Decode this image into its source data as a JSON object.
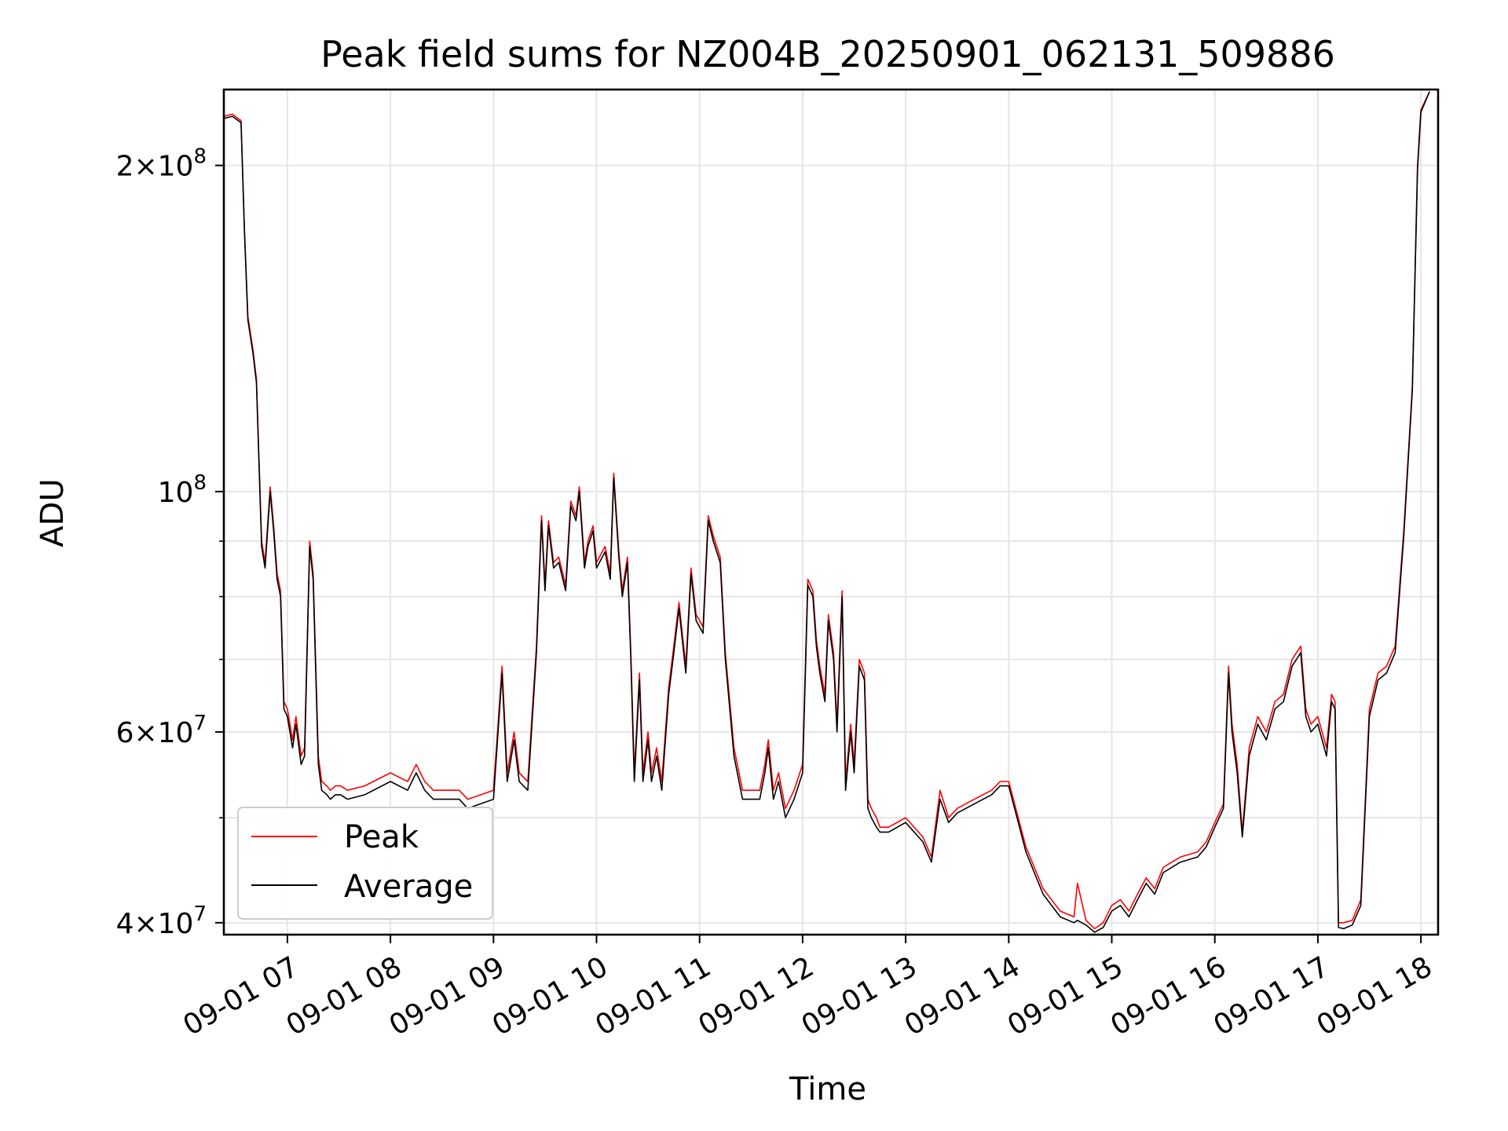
{
  "chart_data": {
    "type": "line",
    "title": "Peak field sums for NZ004B_20250901_062131_509886",
    "xlabel": "Time",
    "ylabel": "ADU",
    "y_scale": "log",
    "ylim": [
      39000000,
      235000000
    ],
    "xlim": [
      "2025-09-01 06:23",
      "2025-09-01 18:10"
    ],
    "grid": true,
    "legend_position": "lower-left",
    "x_ticks": [
      {
        "label": "09-01 07",
        "time": "2025-09-01 07:00"
      },
      {
        "label": "09-01 08",
        "time": "2025-09-01 08:00"
      },
      {
        "label": "09-01 09",
        "time": "2025-09-01 09:00"
      },
      {
        "label": "09-01 10",
        "time": "2025-09-01 10:00"
      },
      {
        "label": "09-01 11",
        "time": "2025-09-01 11:00"
      },
      {
        "label": "09-01 12",
        "time": "2025-09-01 12:00"
      },
      {
        "label": "09-01 13",
        "time": "2025-09-01 13:00"
      },
      {
        "label": "09-01 14",
        "time": "2025-09-01 14:00"
      },
      {
        "label": "09-01 15",
        "time": "2025-09-01 15:00"
      },
      {
        "label": "09-01 16",
        "time": "2025-09-01 16:00"
      },
      {
        "label": "09-01 17",
        "time": "2025-09-01 17:00"
      },
      {
        "label": "09-01 18",
        "time": "2025-09-01 18:00"
      }
    ],
    "y_ticks": [
      {
        "base": "4",
        "exp": "7",
        "value": 40000000
      },
      {
        "base": "6",
        "exp": "7",
        "value": 60000000
      },
      {
        "base": "",
        "exp": "8",
        "value": 100000000
      },
      {
        "base": "2",
        "exp": "8",
        "value": 200000000
      }
    ],
    "y_minor_ticks": [
      50000000,
      70000000,
      80000000,
      90000000
    ],
    "series": [
      {
        "name": "Peak",
        "color": "#ff0000",
        "x": [
          "2025-09-01 06:23",
          "2025-09-01 06:28",
          "2025-09-01 06:33",
          "2025-09-01 06:35",
          "2025-09-01 06:37",
          "2025-09-01 06:40",
          "2025-09-01 06:42",
          "2025-09-01 06:45",
          "2025-09-01 06:47",
          "2025-09-01 06:50",
          "2025-09-01 06:52",
          "2025-09-01 06:54",
          "2025-09-01 06:56",
          "2025-09-01 06:58",
          "2025-09-01 07:00",
          "2025-09-01 07:03",
          "2025-09-01 07:05",
          "2025-09-01 07:08",
          "2025-09-01 07:10",
          "2025-09-01 07:13",
          "2025-09-01 07:15",
          "2025-09-01 07:18",
          "2025-09-01 07:20",
          "2025-09-01 07:23",
          "2025-09-01 07:25",
          "2025-09-01 07:28",
          "2025-09-01 07:31",
          "2025-09-01 07:35",
          "2025-09-01 07:45",
          "2025-09-01 08:00",
          "2025-09-01 08:10",
          "2025-09-01 08:15",
          "2025-09-01 08:20",
          "2025-09-01 08:25",
          "2025-09-01 08:30",
          "2025-09-01 08:35",
          "2025-09-01 08:40",
          "2025-09-01 08:45",
          "2025-09-01 09:00",
          "2025-09-01 09:05",
          "2025-09-01 09:08",
          "2025-09-01 09:12",
          "2025-09-01 09:15",
          "2025-09-01 09:20",
          "2025-09-01 09:25",
          "2025-09-01 09:28",
          "2025-09-01 09:30",
          "2025-09-01 09:32",
          "2025-09-01 09:35",
          "2025-09-01 09:38",
          "2025-09-01 09:42",
          "2025-09-01 09:45",
          "2025-09-01 09:48",
          "2025-09-01 09:50",
          "2025-09-01 09:53",
          "2025-09-01 09:55",
          "2025-09-01 09:58",
          "2025-09-01 10:00",
          "2025-09-01 10:05",
          "2025-09-01 10:08",
          "2025-09-01 10:10",
          "2025-09-01 10:13",
          "2025-09-01 10:15",
          "2025-09-01 10:18",
          "2025-09-01 10:20",
          "2025-09-01 10:22",
          "2025-09-01 10:25",
          "2025-09-01 10:27",
          "2025-09-01 10:30",
          "2025-09-01 10:32",
          "2025-09-01 10:35",
          "2025-09-01 10:38",
          "2025-09-01 10:42",
          "2025-09-01 10:45",
          "2025-09-01 10:48",
          "2025-09-01 10:52",
          "2025-09-01 10:55",
          "2025-09-01 10:58",
          "2025-09-01 11:02",
          "2025-09-01 11:05",
          "2025-09-01 11:08",
          "2025-09-01 11:12",
          "2025-09-01 11:15",
          "2025-09-01 11:20",
          "2025-09-01 11:25",
          "2025-09-01 11:35",
          "2025-09-01 11:38",
          "2025-09-01 11:40",
          "2025-09-01 11:43",
          "2025-09-01 11:46",
          "2025-09-01 11:50",
          "2025-09-01 11:55",
          "2025-09-01 12:00",
          "2025-09-01 12:03",
          "2025-09-01 12:06",
          "2025-09-01 12:08",
          "2025-09-01 12:10",
          "2025-09-01 12:13",
          "2025-09-01 12:15",
          "2025-09-01 12:18",
          "2025-09-01 12:20",
          "2025-09-01 12:23",
          "2025-09-01 12:25",
          "2025-09-01 12:28",
          "2025-09-01 12:30",
          "2025-09-01 12:33",
          "2025-09-01 12:36",
          "2025-09-01 12:38",
          "2025-09-01 12:40",
          "2025-09-01 12:43",
          "2025-09-01 12:45",
          "2025-09-01 12:50",
          "2025-09-01 13:00",
          "2025-09-01 13:10",
          "2025-09-01 13:15",
          "2025-09-01 13:20",
          "2025-09-01 13:25",
          "2025-09-01 13:30",
          "2025-09-01 13:40",
          "2025-09-01 13:50",
          "2025-09-01 13:55",
          "2025-09-01 14:00",
          "2025-09-01 14:10",
          "2025-09-01 14:20",
          "2025-09-01 14:30",
          "2025-09-01 14:38",
          "2025-09-01 14:40",
          "2025-09-01 14:45",
          "2025-09-01 14:50",
          "2025-09-01 14:55",
          "2025-09-01 15:00",
          "2025-09-01 15:05",
          "2025-09-01 15:10",
          "2025-09-01 15:15",
          "2025-09-01 15:20",
          "2025-09-01 15:25",
          "2025-09-01 15:30",
          "2025-09-01 15:40",
          "2025-09-01 15:50",
          "2025-09-01 15:55",
          "2025-09-01 16:00",
          "2025-09-01 16:05",
          "2025-09-01 16:08",
          "2025-09-01 16:10",
          "2025-09-01 16:13",
          "2025-09-01 16:16",
          "2025-09-01 16:20",
          "2025-09-01 16:25",
          "2025-09-01 16:30",
          "2025-09-01 16:35",
          "2025-09-01 16:40",
          "2025-09-01 16:45",
          "2025-09-01 16:50",
          "2025-09-01 16:53",
          "2025-09-01 16:56",
          "2025-09-01 17:00",
          "2025-09-01 17:05",
          "2025-09-01 17:08",
          "2025-09-01 17:10",
          "2025-09-01 17:12",
          "2025-09-01 17:15",
          "2025-09-01 17:20",
          "2025-09-01 17:25",
          "2025-09-01 17:30",
          "2025-09-01 17:35",
          "2025-09-01 17:40",
          "2025-09-01 17:45",
          "2025-09-01 17:50",
          "2025-09-01 17:55",
          "2025-09-01 17:58",
          "2025-09-01 18:00",
          "2025-09-01 18:05"
        ],
        "y": [
          222000000,
          223000000,
          220000000,
          175000000,
          145000000,
          135000000,
          127000000,
          90000000,
          86000000,
          101000000,
          93000000,
          84000000,
          81000000,
          64000000,
          63000000,
          59000000,
          62000000,
          57000000,
          58000000,
          90000000,
          84000000,
          57000000,
          54000000,
          53500000,
          53000000,
          53500000,
          53500000,
          53000000,
          53500000,
          55000000,
          54000000,
          56000000,
          54000000,
          53000000,
          53000000,
          53000000,
          53000000,
          52000000,
          53000000,
          69000000,
          55000000,
          60000000,
          55000000,
          54000000,
          72000000,
          95000000,
          82000000,
          94000000,
          86000000,
          87000000,
          82000000,
          98000000,
          95000000,
          101000000,
          86000000,
          90000000,
          93000000,
          86000000,
          89000000,
          84000000,
          104000000,
          88000000,
          81000000,
          87000000,
          71000000,
          55000000,
          68000000,
          55000000,
          60000000,
          55000000,
          58000000,
          54000000,
          66000000,
          72000000,
          79000000,
          69000000,
          85000000,
          77000000,
          75000000,
          95000000,
          91000000,
          87000000,
          71000000,
          58000000,
          53000000,
          53000000,
          56000000,
          59000000,
          53000000,
          55000000,
          51000000,
          53000000,
          56000000,
          83000000,
          81000000,
          73000000,
          69000000,
          65000000,
          77000000,
          71000000,
          61000000,
          81000000,
          54000000,
          61000000,
          56000000,
          70000000,
          68000000,
          52000000,
          51000000,
          50000000,
          49000000,
          49000000,
          50000000,
          48000000,
          46000000,
          53000000,
          50000000,
          51000000,
          52000000,
          53000000,
          54000000,
          54000000,
          47000000,
          43000000,
          41000000,
          40500000,
          43500000,
          40200000,
          39500000,
          40000000,
          41500000,
          42000000,
          41000000,
          42500000,
          44000000,
          43000000,
          45000000,
          46000000,
          46500000,
          47500000,
          49500000,
          51500000,
          69000000,
          61000000,
          56000000,
          48500000,
          58000000,
          62000000,
          60000000,
          64000000,
          65000000,
          70000000,
          72000000,
          63000000,
          61000000,
          62000000,
          58000000,
          65000000,
          64000000,
          40000000,
          40000000,
          40200000,
          42000000,
          63000000,
          68000000,
          69000000,
          72000000,
          92000000,
          125000000,
          200000000,
          225000000,
          234000000
        ]
      },
      {
        "name": "Average",
        "color": "#000000",
        "x": [
          "2025-09-01 06:23",
          "2025-09-01 06:28",
          "2025-09-01 06:33",
          "2025-09-01 06:35",
          "2025-09-01 06:37",
          "2025-09-01 06:40",
          "2025-09-01 06:42",
          "2025-09-01 06:45",
          "2025-09-01 06:47",
          "2025-09-01 06:50",
          "2025-09-01 06:52",
          "2025-09-01 06:54",
          "2025-09-01 06:56",
          "2025-09-01 06:58",
          "2025-09-01 07:00",
          "2025-09-01 07:03",
          "2025-09-01 07:05",
          "2025-09-01 07:08",
          "2025-09-01 07:10",
          "2025-09-01 07:13",
          "2025-09-01 07:15",
          "2025-09-01 07:18",
          "2025-09-01 07:20",
          "2025-09-01 07:23",
          "2025-09-01 07:25",
          "2025-09-01 07:28",
          "2025-09-01 07:31",
          "2025-09-01 07:35",
          "2025-09-01 07:45",
          "2025-09-01 08:00",
          "2025-09-01 08:10",
          "2025-09-01 08:15",
          "2025-09-01 08:20",
          "2025-09-01 08:25",
          "2025-09-01 08:30",
          "2025-09-01 08:35",
          "2025-09-01 08:40",
          "2025-09-01 08:45",
          "2025-09-01 09:00",
          "2025-09-01 09:05",
          "2025-09-01 09:08",
          "2025-09-01 09:12",
          "2025-09-01 09:15",
          "2025-09-01 09:20",
          "2025-09-01 09:25",
          "2025-09-01 09:28",
          "2025-09-01 09:30",
          "2025-09-01 09:32",
          "2025-09-01 09:35",
          "2025-09-01 09:38",
          "2025-09-01 09:42",
          "2025-09-01 09:45",
          "2025-09-01 09:48",
          "2025-09-01 09:50",
          "2025-09-01 09:53",
          "2025-09-01 09:55",
          "2025-09-01 09:58",
          "2025-09-01 10:00",
          "2025-09-01 10:05",
          "2025-09-01 10:08",
          "2025-09-01 10:10",
          "2025-09-01 10:13",
          "2025-09-01 10:15",
          "2025-09-01 10:18",
          "2025-09-01 10:20",
          "2025-09-01 10:22",
          "2025-09-01 10:25",
          "2025-09-01 10:27",
          "2025-09-01 10:30",
          "2025-09-01 10:32",
          "2025-09-01 10:35",
          "2025-09-01 10:38",
          "2025-09-01 10:42",
          "2025-09-01 10:45",
          "2025-09-01 10:48",
          "2025-09-01 10:52",
          "2025-09-01 10:55",
          "2025-09-01 10:58",
          "2025-09-01 11:02",
          "2025-09-01 11:05",
          "2025-09-01 11:08",
          "2025-09-01 11:12",
          "2025-09-01 11:15",
          "2025-09-01 11:20",
          "2025-09-01 11:25",
          "2025-09-01 11:35",
          "2025-09-01 11:38",
          "2025-09-01 11:40",
          "2025-09-01 11:43",
          "2025-09-01 11:46",
          "2025-09-01 11:50",
          "2025-09-01 11:55",
          "2025-09-01 12:00",
          "2025-09-01 12:03",
          "2025-09-01 12:06",
          "2025-09-01 12:08",
          "2025-09-01 12:10",
          "2025-09-01 12:13",
          "2025-09-01 12:15",
          "2025-09-01 12:18",
          "2025-09-01 12:20",
          "2025-09-01 12:23",
          "2025-09-01 12:25",
          "2025-09-01 12:28",
          "2025-09-01 12:30",
          "2025-09-01 12:33",
          "2025-09-01 12:36",
          "2025-09-01 12:38",
          "2025-09-01 12:40",
          "2025-09-01 12:43",
          "2025-09-01 12:45",
          "2025-09-01 12:50",
          "2025-09-01 13:00",
          "2025-09-01 13:10",
          "2025-09-01 13:15",
          "2025-09-01 13:20",
          "2025-09-01 13:25",
          "2025-09-01 13:30",
          "2025-09-01 13:40",
          "2025-09-01 13:50",
          "2025-09-01 13:55",
          "2025-09-01 14:00",
          "2025-09-01 14:10",
          "2025-09-01 14:20",
          "2025-09-01 14:30",
          "2025-09-01 14:38",
          "2025-09-01 14:40",
          "2025-09-01 14:45",
          "2025-09-01 14:50",
          "2025-09-01 14:55",
          "2025-09-01 15:00",
          "2025-09-01 15:05",
          "2025-09-01 15:10",
          "2025-09-01 15:15",
          "2025-09-01 15:20",
          "2025-09-01 15:25",
          "2025-09-01 15:30",
          "2025-09-01 15:40",
          "2025-09-01 15:50",
          "2025-09-01 15:55",
          "2025-09-01 16:00",
          "2025-09-01 16:05",
          "2025-09-01 16:08",
          "2025-09-01 16:10",
          "2025-09-01 16:13",
          "2025-09-01 16:16",
          "2025-09-01 16:20",
          "2025-09-01 16:25",
          "2025-09-01 16:30",
          "2025-09-01 16:35",
          "2025-09-01 16:40",
          "2025-09-01 16:45",
          "2025-09-01 16:50",
          "2025-09-01 16:53",
          "2025-09-01 16:56",
          "2025-09-01 17:00",
          "2025-09-01 17:05",
          "2025-09-01 17:08",
          "2025-09-01 17:10",
          "2025-09-01 17:12",
          "2025-09-01 17:15",
          "2025-09-01 17:20",
          "2025-09-01 17:25",
          "2025-09-01 17:30",
          "2025-09-01 17:35",
          "2025-09-01 17:40",
          "2025-09-01 17:45",
          "2025-09-01 17:50",
          "2025-09-01 17:55",
          "2025-09-01 17:58",
          "2025-09-01 18:00",
          "2025-09-01 18:05"
        ],
        "y": [
          221000000,
          222000000,
          219000000,
          174000000,
          144000000,
          134000000,
          126000000,
          89000000,
          85000000,
          100000000,
          92000000,
          83000000,
          80000000,
          63000000,
          62000000,
          58000000,
          61000000,
          56000000,
          57000000,
          89000000,
          83000000,
          56000000,
          53000000,
          52500000,
          52000000,
          52500000,
          52500000,
          52000000,
          52500000,
          54000000,
          53000000,
          55000000,
          53000000,
          52000000,
          52000000,
          52000000,
          52000000,
          51000000,
          52000000,
          68000000,
          54000000,
          59000000,
          54000000,
          53000000,
          71000000,
          94000000,
          81000000,
          93000000,
          85000000,
          86000000,
          81000000,
          97000000,
          94000000,
          100000000,
          85000000,
          89000000,
          92000000,
          85000000,
          88000000,
          83000000,
          103000000,
          87000000,
          80000000,
          86000000,
          70000000,
          54000000,
          67000000,
          54000000,
          59000000,
          54000000,
          57000000,
          53000000,
          65000000,
          71000000,
          78000000,
          68000000,
          84000000,
          76000000,
          74000000,
          94000000,
          90000000,
          86000000,
          70000000,
          57000000,
          52000000,
          52000000,
          55000000,
          58000000,
          52000000,
          54000000,
          50000000,
          52000000,
          55000000,
          82000000,
          80000000,
          72000000,
          68000000,
          64000000,
          76000000,
          70000000,
          60000000,
          80000000,
          53000000,
          60000000,
          55000000,
          69000000,
          67000000,
          51000000,
          50000000,
          49000000,
          48500000,
          48500000,
          49500000,
          47500000,
          45500000,
          52000000,
          49500000,
          50500000,
          51500000,
          52500000,
          53500000,
          53500000,
          46500000,
          42500000,
          40500000,
          40000000,
          40200000,
          39800000,
          39200000,
          39600000,
          41000000,
          41500000,
          40500000,
          42000000,
          43500000,
          42500000,
          44500000,
          45500000,
          46000000,
          47000000,
          49000000,
          51000000,
          68000000,
          60000000,
          55000000,
          48000000,
          57000000,
          61000000,
          59000000,
          63000000,
          64000000,
          69000000,
          71000000,
          62000000,
          60000000,
          61000000,
          57000000,
          64000000,
          63000000,
          39600000,
          39500000,
          39800000,
          41500000,
          62000000,
          67000000,
          68000000,
          71000000,
          91000000,
          124000000,
          198000000,
          224000000,
          234000000
        ]
      }
    ]
  }
}
